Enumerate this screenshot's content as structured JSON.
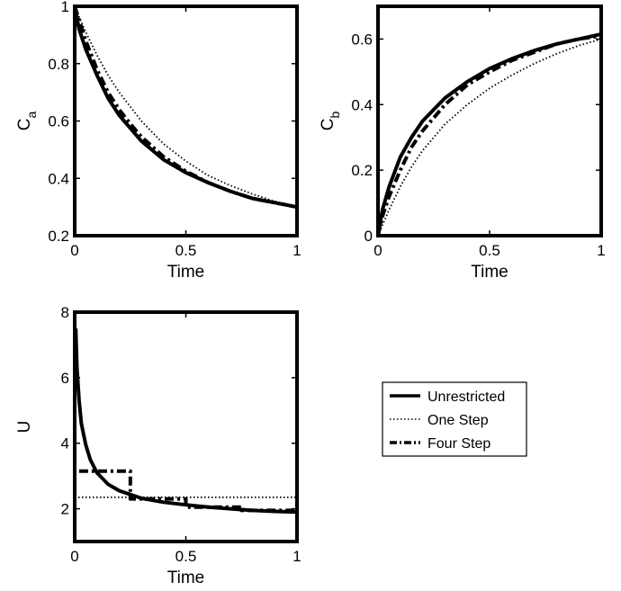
{
  "chart_data": [
    {
      "type": "line",
      "xlabel": "Time",
      "ylabel": "C",
      "ylabel_sub": "a",
      "xlim": [
        0,
        1
      ],
      "ylim": [
        0.2,
        1.0
      ],
      "xticks": [
        "0",
        "0.5",
        "1"
      ],
      "yticks": [
        "0.2",
        "0.4",
        "0.6",
        "0.8",
        "1"
      ],
      "series": [
        {
          "name": "Unrestricted",
          "style": "solid",
          "x": [
            0,
            0.02,
            0.05,
            0.1,
            0.15,
            0.2,
            0.3,
            0.4,
            0.5,
            0.6,
            0.7,
            0.8,
            0.9,
            1.0
          ],
          "y": [
            1.0,
            0.92,
            0.85,
            0.76,
            0.68,
            0.62,
            0.53,
            0.465,
            0.42,
            0.385,
            0.355,
            0.33,
            0.315,
            0.3
          ]
        },
        {
          "name": "One Step",
          "style": "dotted",
          "x": [
            0,
            0.05,
            0.1,
            0.15,
            0.2,
            0.3,
            0.4,
            0.5,
            0.6,
            0.7,
            0.8,
            0.9,
            1.0
          ],
          "y": [
            1.0,
            0.91,
            0.83,
            0.76,
            0.7,
            0.6,
            0.52,
            0.46,
            0.41,
            0.375,
            0.345,
            0.32,
            0.3
          ]
        },
        {
          "name": "Four Step",
          "style": "dashdot",
          "x": [
            0,
            0.05,
            0.1,
            0.15,
            0.2,
            0.25,
            0.3,
            0.4,
            0.5,
            0.6,
            0.7,
            0.8,
            0.9,
            1.0
          ],
          "y": [
            1.0,
            0.88,
            0.78,
            0.7,
            0.64,
            0.59,
            0.545,
            0.475,
            0.425,
            0.385,
            0.355,
            0.33,
            0.315,
            0.3
          ]
        }
      ]
    },
    {
      "type": "line",
      "xlabel": "Time",
      "ylabel": "C",
      "ylabel_sub": "b",
      "xlim": [
        0,
        1
      ],
      "ylim": [
        0,
        0.7
      ],
      "xticks": [
        "0",
        "0.5",
        "1"
      ],
      "yticks": [
        "0",
        "0.2",
        "0.4",
        "0.6"
      ],
      "series": [
        {
          "name": "Unrestricted",
          "style": "solid",
          "x": [
            0,
            0.02,
            0.05,
            0.1,
            0.15,
            0.2,
            0.3,
            0.4,
            0.5,
            0.6,
            0.7,
            0.8,
            0.9,
            1.0
          ],
          "y": [
            0,
            0.08,
            0.15,
            0.24,
            0.3,
            0.35,
            0.42,
            0.47,
            0.51,
            0.54,
            0.565,
            0.585,
            0.6,
            0.615
          ]
        },
        {
          "name": "One Step",
          "style": "dotted",
          "x": [
            0,
            0.05,
            0.1,
            0.15,
            0.2,
            0.3,
            0.4,
            0.5,
            0.6,
            0.7,
            0.8,
            0.9,
            1.0
          ],
          "y": [
            0,
            0.08,
            0.15,
            0.21,
            0.26,
            0.34,
            0.4,
            0.45,
            0.49,
            0.525,
            0.555,
            0.58,
            0.6
          ]
        },
        {
          "name": "Four Step",
          "style": "dashdot",
          "x": [
            0,
            0.02,
            0.05,
            0.1,
            0.15,
            0.2,
            0.25,
            0.3,
            0.4,
            0.5,
            0.6,
            0.7,
            0.8,
            0.9,
            1.0
          ],
          "y": [
            0,
            0.06,
            0.12,
            0.2,
            0.27,
            0.32,
            0.36,
            0.4,
            0.46,
            0.5,
            0.535,
            0.56,
            0.585,
            0.6,
            0.61
          ]
        }
      ]
    },
    {
      "type": "line",
      "xlabel": "Time",
      "ylabel": "U",
      "xlim": [
        0,
        1
      ],
      "ylim": [
        1,
        8
      ],
      "xticks": [
        "0",
        "0.5",
        "1"
      ],
      "yticks": [
        "2",
        "4",
        "6",
        "8"
      ],
      "legend": {
        "position": "right",
        "entries": [
          "Unrestricted",
          "One Step",
          "Four Step"
        ]
      },
      "series": [
        {
          "name": "Unrestricted",
          "style": "solid",
          "x": [
            0.005,
            0.01,
            0.02,
            0.03,
            0.05,
            0.07,
            0.1,
            0.15,
            0.2,
            0.3,
            0.4,
            0.5,
            0.6,
            0.7,
            0.8,
            0.9,
            1.0
          ],
          "y": [
            7.5,
            6.3,
            5.3,
            4.6,
            3.95,
            3.5,
            3.1,
            2.75,
            2.55,
            2.32,
            2.2,
            2.12,
            2.05,
            2.0,
            1.95,
            1.92,
            1.9
          ]
        },
        {
          "name": "One Step",
          "style": "dotted",
          "x": [
            0,
            1.0
          ],
          "y": [
            2.35,
            2.35
          ]
        },
        {
          "name": "Four Step",
          "style": "dashdot",
          "x": [
            0.02,
            0.25,
            0.25,
            0.5,
            0.5,
            0.75,
            0.75,
            1.0
          ],
          "y": [
            3.15,
            3.15,
            2.3,
            2.3,
            2.05,
            2.05,
            1.95,
            1.95
          ]
        }
      ]
    }
  ]
}
